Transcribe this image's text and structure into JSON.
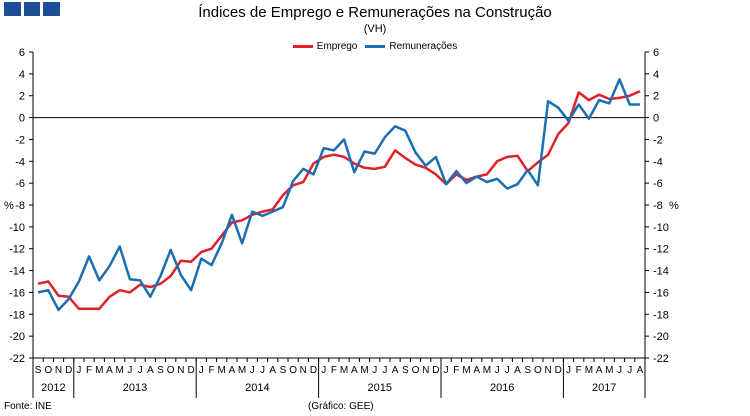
{
  "logo": "INE",
  "chart_data": {
    "type": "line",
    "title": "Índices de Emprego e Remunerações na Construção",
    "subtitle": "(VH)",
    "ylabel_left": "%",
    "ylabel_right": "%",
    "ylim": [
      -22,
      6
    ],
    "yticks": [
      6,
      4,
      2,
      0,
      -2,
      -4,
      -6,
      -8,
      -10,
      -12,
      -14,
      -16,
      -18,
      -20,
      -22
    ],
    "month_labels": [
      "S",
      "O",
      "N",
      "D",
      "J",
      "F",
      "M",
      "A",
      "M",
      "J",
      "J",
      "A",
      "S",
      "O",
      "N",
      "D",
      "J",
      "F",
      "M",
      "A",
      "M",
      "J",
      "J",
      "A",
      "S",
      "O",
      "N",
      "D",
      "J",
      "F",
      "M",
      "A",
      "M",
      "J",
      "J",
      "A",
      "S",
      "O",
      "N",
      "D",
      "J",
      "F",
      "M",
      "A",
      "M",
      "J",
      "J",
      "A",
      "S",
      "O",
      "N",
      "D",
      "J",
      "F",
      "M",
      "A",
      "M",
      "J",
      "J",
      "A"
    ],
    "year_labels": [
      "2012",
      "2013",
      "2014",
      "2015",
      "2016",
      "2017"
    ],
    "year_spans": [
      [
        0,
        3
      ],
      [
        4,
        15
      ],
      [
        16,
        27
      ],
      [
        28,
        39
      ],
      [
        40,
        51
      ],
      [
        52,
        59
      ]
    ],
    "series": [
      {
        "name": "Emprego",
        "color": "#e0202a",
        "values": [
          -15.2,
          -15.0,
          -16.3,
          -16.4,
          -17.5,
          -17.5,
          -17.5,
          -16.4,
          -15.8,
          -16.0,
          -15.3,
          -15.5,
          -15.2,
          -14.5,
          -13.1,
          -13.2,
          -12.3,
          -12.0,
          -10.8,
          -9.6,
          -9.4,
          -8.9,
          -8.6,
          -8.4,
          -7.1,
          -6.2,
          -5.9,
          -4.2,
          -3.6,
          -3.4,
          -3.6,
          -4.2,
          -4.6,
          -4.7,
          -4.5,
          -3.0,
          -3.7,
          -4.3,
          -4.6,
          -5.2,
          -6.1,
          -5.2,
          -5.7,
          -5.4,
          -5.2,
          -4.0,
          -3.6,
          -3.5,
          -4.9,
          -4.1,
          -3.4,
          -1.5,
          -0.5,
          2.3,
          1.6,
          2.1,
          1.7,
          1.8,
          2.0,
          2.4
        ]
      },
      {
        "name": "Remunerações",
        "color": "#1d6eb0",
        "values": [
          -16.0,
          -15.8,
          -17.6,
          -16.6,
          -15.0,
          -12.7,
          -14.9,
          -13.6,
          -11.8,
          -14.8,
          -14.9,
          -16.4,
          -14.5,
          -12.1,
          -14.4,
          -15.8,
          -12.9,
          -13.5,
          -11.5,
          -8.9,
          -11.5,
          -8.6,
          -9.0,
          -8.6,
          -8.2,
          -5.8,
          -4.7,
          -5.2,
          -2.8,
          -3.0,
          -2.0,
          -5.0,
          -3.1,
          -3.3,
          -1.8,
          -0.8,
          -1.2,
          -3.2,
          -4.4,
          -3.6,
          -6.1,
          -4.9,
          -6.0,
          -5.4,
          -5.9,
          -5.6,
          -6.5,
          -6.1,
          -4.8,
          -6.2,
          1.5,
          0.9,
          -0.3,
          1.2,
          -0.1,
          1.6,
          1.3,
          3.5,
          1.2,
          1.2
        ]
      }
    ]
  },
  "source": "Fonte: INE",
  "credit": "(Gráfico: GEE)"
}
